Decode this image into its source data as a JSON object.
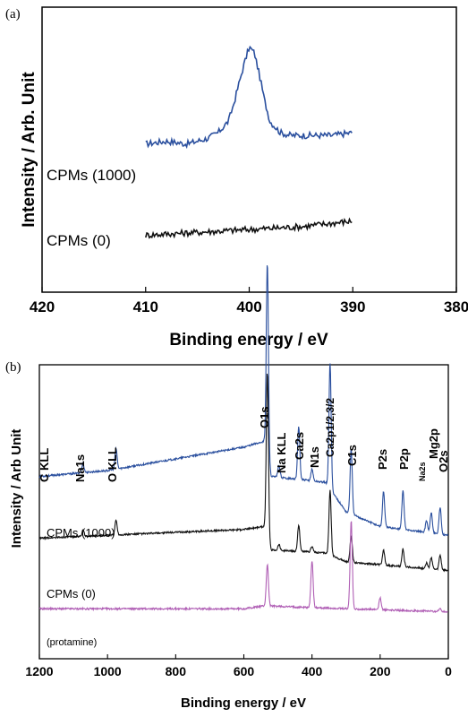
{
  "chart_data": [
    {
      "type": "line",
      "panel_label": "(a)",
      "xlabel": "Binding energy / eV",
      "ylabel": "Intensity / Arb. Unit",
      "xlim": [
        420,
        380
      ],
      "x_ticks": [
        420,
        410,
        400,
        390,
        380
      ],
      "x_tick_labels": [
        "420",
        "410",
        "400",
        "390",
        "380"
      ],
      "grid": false,
      "series": [
        {
          "name": "CPMs (1000)",
          "color": "#2a4f9e",
          "x": [
            410,
            408,
            406,
            404,
            403,
            402,
            401.5,
            401,
            400.5,
            400,
            399.5,
            399,
            398.5,
            398,
            397,
            396,
            394,
            392,
            390
          ],
          "y": [
            0.52,
            0.53,
            0.52,
            0.54,
            0.56,
            0.6,
            0.66,
            0.73,
            0.8,
            0.86,
            0.84,
            0.76,
            0.67,
            0.6,
            0.56,
            0.55,
            0.55,
            0.55,
            0.56
          ]
        },
        {
          "name": "CPMs (0)",
          "color": "#111111",
          "x": [
            410,
            405,
            400,
            395,
            390
          ],
          "y": [
            0.2,
            0.21,
            0.22,
            0.23,
            0.25
          ]
        }
      ]
    },
    {
      "type": "line",
      "panel_label": "(b)",
      "xlabel": "Binding energy / eV",
      "ylabel": "Intensity / Arb Unit",
      "xlim": [
        1200,
        0
      ],
      "x_ticks": [
        1200,
        1000,
        800,
        600,
        400,
        200,
        0
      ],
      "x_tick_labels": [
        "1200",
        "1000",
        "800",
        "600",
        "400",
        "200",
        "0"
      ],
      "grid": false,
      "peak_labels": [
        {
          "text": "C KLL",
          "x": 1190
        },
        {
          "text": "Na1s",
          "x": 1072
        },
        {
          "text": "O KLL",
          "x": 975
        },
        {
          "text": "O1s",
          "x": 531
        },
        {
          "text": "Na KLL",
          "x": 497
        },
        {
          "text": "Ca2s",
          "x": 439
        },
        {
          "text": "N1s",
          "x": 400
        },
        {
          "text": "Ca2p1/2,3/2",
          "x": 347
        },
        {
          "text": "C1s",
          "x": 285
        },
        {
          "text": "P2s",
          "x": 190
        },
        {
          "text": "P2p",
          "x": 133
        },
        {
          "text": "Na2s",
          "x": 64
        },
        {
          "text": "Mg2p",
          "x": 50
        },
        {
          "text": "O2s",
          "x": 24
        }
      ],
      "series": [
        {
          "name": "CPMs (1000)",
          "color": "#2a4f9e",
          "baseline": [
            [
              1200,
              0.62
            ],
            [
              1000,
              0.64
            ],
            [
              600,
              0.72
            ],
            [
              540,
              0.74
            ],
            [
              520,
              0.62
            ],
            [
              360,
              0.6
            ],
            [
              300,
              0.5
            ],
            [
              200,
              0.45
            ],
            [
              0,
              0.42
            ]
          ],
          "peaks": [
            [
              1072,
              0.03
            ],
            [
              975,
              0.07
            ],
            [
              531,
              0.66
            ],
            [
              497,
              0.04
            ],
            [
              439,
              0.18
            ],
            [
              400,
              0.04
            ],
            [
              347,
              0.43
            ],
            [
              285,
              0.22
            ],
            [
              190,
              0.12
            ],
            [
              133,
              0.13
            ],
            [
              64,
              0.04
            ],
            [
              50,
              0.07
            ],
            [
              24,
              0.09
            ]
          ]
        },
        {
          "name": "CPMs (0)",
          "color": "#111111",
          "baseline": [
            [
              1200,
              0.41
            ],
            [
              1000,
              0.42
            ],
            [
              600,
              0.44
            ],
            [
              540,
              0.45
            ],
            [
              520,
              0.37
            ],
            [
              360,
              0.36
            ],
            [
              300,
              0.33
            ],
            [
              200,
              0.32
            ],
            [
              0,
              0.3
            ]
          ],
          "peaks": [
            [
              1072,
              0.02
            ],
            [
              975,
              0.05
            ],
            [
              531,
              0.56
            ],
            [
              497,
              0.02
            ],
            [
              439,
              0.09
            ],
            [
              400,
              0.02
            ],
            [
              347,
              0.22
            ],
            [
              285,
              0.09
            ],
            [
              190,
              0.05
            ],
            [
              133,
              0.06
            ],
            [
              64,
              0.02
            ],
            [
              50,
              0.04
            ],
            [
              24,
              0.05
            ]
          ]
        },
        {
          "name": "(protamine)",
          "color": "#b05fb5",
          "baseline": [
            [
              1200,
              0.17
            ],
            [
              600,
              0.17
            ],
            [
              540,
              0.18
            ],
            [
              300,
              0.17
            ],
            [
              0,
              0.16
            ]
          ],
          "peaks": [
            [
              531,
              0.14
            ],
            [
              400,
              0.16
            ],
            [
              285,
              0.3
            ],
            [
              200,
              0.04
            ],
            [
              24,
              0.01
            ]
          ]
        }
      ]
    }
  ]
}
